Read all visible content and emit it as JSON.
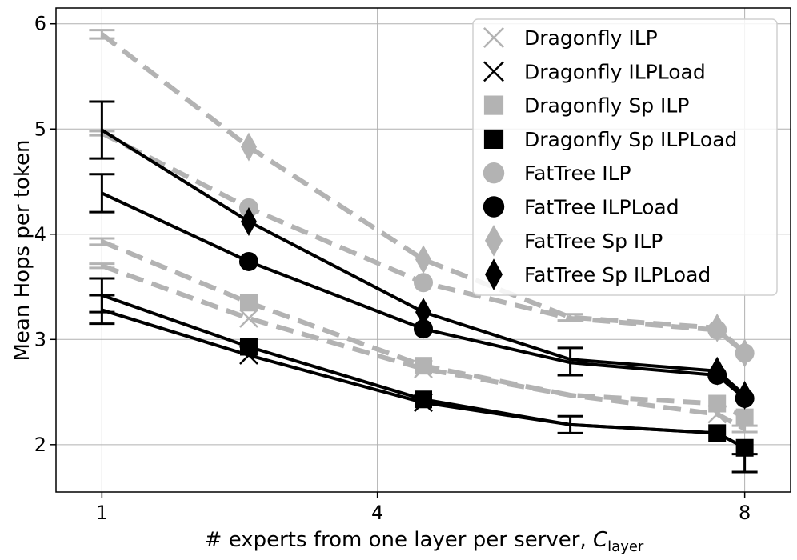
{
  "chart_data": {
    "type": "line",
    "title": "",
    "xlabel_prefix": "# experts from one layer per server, ",
    "xlabel_symbol": "C",
    "xlabel_subscript": "layer",
    "ylabel": "Mean Hops per token",
    "xlim": [
      0.5,
      8.5
    ],
    "ylim": [
      1.55,
      6.15
    ],
    "x_ticks": [
      1,
      4,
      8
    ],
    "x_tick_labels": [
      "1",
      "4",
      "8"
    ],
    "y_ticks": [
      2,
      3,
      4,
      5,
      6
    ],
    "y_tick_labels": [
      "2",
      "3",
      "4",
      "5",
      "6"
    ],
    "grid": true,
    "legend_position": "top-right",
    "colors": {
      "light": "#b3b3b3",
      "dark": "#000000"
    },
    "series": [
      {
        "name": "Dragonfly ILP",
        "marker": "x",
        "color": "#b3b3b3",
        "dashed": true,
        "x": [
          1,
          2.6,
          4.5,
          6.1,
          7.7,
          8.0
        ],
        "y": [
          3.7,
          3.2,
          2.72,
          2.47,
          2.29,
          2.15
        ],
        "marked": [
          false,
          true,
          true,
          false,
          true,
          false
        ],
        "errors": [
          {
            "x": 1,
            "low": 3.68,
            "high": 3.72
          },
          {
            "x": 8.0,
            "low": 2.12,
            "high": 2.18
          }
        ]
      },
      {
        "name": "Dragonfly ILPLoad",
        "marker": "x",
        "color": "#000000",
        "dashed": false,
        "x": [
          1,
          2.6,
          4.5,
          6.1,
          7.7,
          8.0
        ],
        "y": [
          3.28,
          2.85,
          2.4,
          2.19,
          2.11,
          1.97
        ],
        "marked": [
          false,
          true,
          true,
          false,
          false,
          false
        ],
        "errors": [
          {
            "x": 1,
            "low": 3.15,
            "high": 3.42
          }
        ]
      },
      {
        "name": "Dragonfly Sp ILP",
        "marker": "square",
        "color": "#b3b3b3",
        "dashed": true,
        "x": [
          1,
          2.6,
          4.5,
          6.1,
          7.7,
          8.0
        ],
        "y": [
          3.93,
          3.35,
          2.75,
          2.47,
          2.39,
          2.26
        ],
        "marked": [
          false,
          true,
          true,
          false,
          true,
          true
        ],
        "errors": [
          {
            "x": 1,
            "low": 3.9,
            "high": 3.96
          }
        ]
      },
      {
        "name": "Dragonfly Sp ILPLoad",
        "marker": "square",
        "color": "#000000",
        "dashed": false,
        "x": [
          1,
          2.6,
          4.5,
          6.1,
          7.7,
          8.0
        ],
        "y": [
          3.42,
          2.93,
          2.43,
          2.19,
          2.11,
          1.97
        ],
        "marked": [
          false,
          true,
          true,
          false,
          true,
          true
        ],
        "errors": [
          {
            "x": 1,
            "low": 3.26,
            "high": 3.58
          },
          {
            "x": 6.1,
            "low": 2.11,
            "high": 2.27
          },
          {
            "x": 8.0,
            "low": 1.74,
            "high": 1.91
          }
        ]
      },
      {
        "name": "FatTree ILP",
        "marker": "circle",
        "color": "#b3b3b3",
        "dashed": true,
        "x": [
          1,
          2.6,
          4.5,
          6.1,
          7.7,
          8.0
        ],
        "y": [
          4.96,
          4.25,
          3.54,
          3.2,
          3.09,
          2.87
        ],
        "marked": [
          false,
          true,
          true,
          false,
          true,
          true
        ],
        "errors": [
          {
            "x": 1,
            "low": 4.94,
            "high": 4.98
          }
        ]
      },
      {
        "name": "FatTree ILPLoad",
        "marker": "circle",
        "color": "#000000",
        "dashed": false,
        "x": [
          1,
          2.6,
          4.5,
          6.1,
          7.7,
          8.0
        ],
        "y": [
          4.39,
          3.74,
          3.1,
          2.78,
          2.66,
          2.44
        ],
        "marked": [
          false,
          true,
          true,
          false,
          true,
          true
        ],
        "errors": [
          {
            "x": 1,
            "low": 4.21,
            "high": 4.57
          }
        ]
      },
      {
        "name": "FatTree Sp ILP",
        "marker": "diamond",
        "color": "#b3b3b3",
        "dashed": true,
        "x": [
          1,
          2.6,
          4.5,
          6.1,
          7.7,
          8.0
        ],
        "y": [
          5.9,
          4.83,
          3.76,
          3.21,
          3.11,
          2.87
        ],
        "marked": [
          false,
          true,
          true,
          false,
          true,
          true
        ],
        "errors": [
          {
            "x": 1,
            "low": 5.86,
            "high": 5.94
          },
          {
            "x": 6.1,
            "low": 3.18,
            "high": 3.24
          }
        ]
      },
      {
        "name": "FatTree Sp ILPLoad",
        "marker": "diamond",
        "color": "#000000",
        "dashed": false,
        "x": [
          1,
          2.6,
          4.5,
          6.1,
          7.7,
          8.0
        ],
        "y": [
          4.99,
          4.12,
          3.26,
          2.81,
          2.7,
          2.47
        ],
        "marked": [
          false,
          true,
          true,
          false,
          true,
          true
        ],
        "errors": [
          {
            "x": 1,
            "low": 4.72,
            "high": 5.26
          },
          {
            "x": 6.1,
            "low": 2.66,
            "high": 2.92
          }
        ]
      }
    ]
  }
}
